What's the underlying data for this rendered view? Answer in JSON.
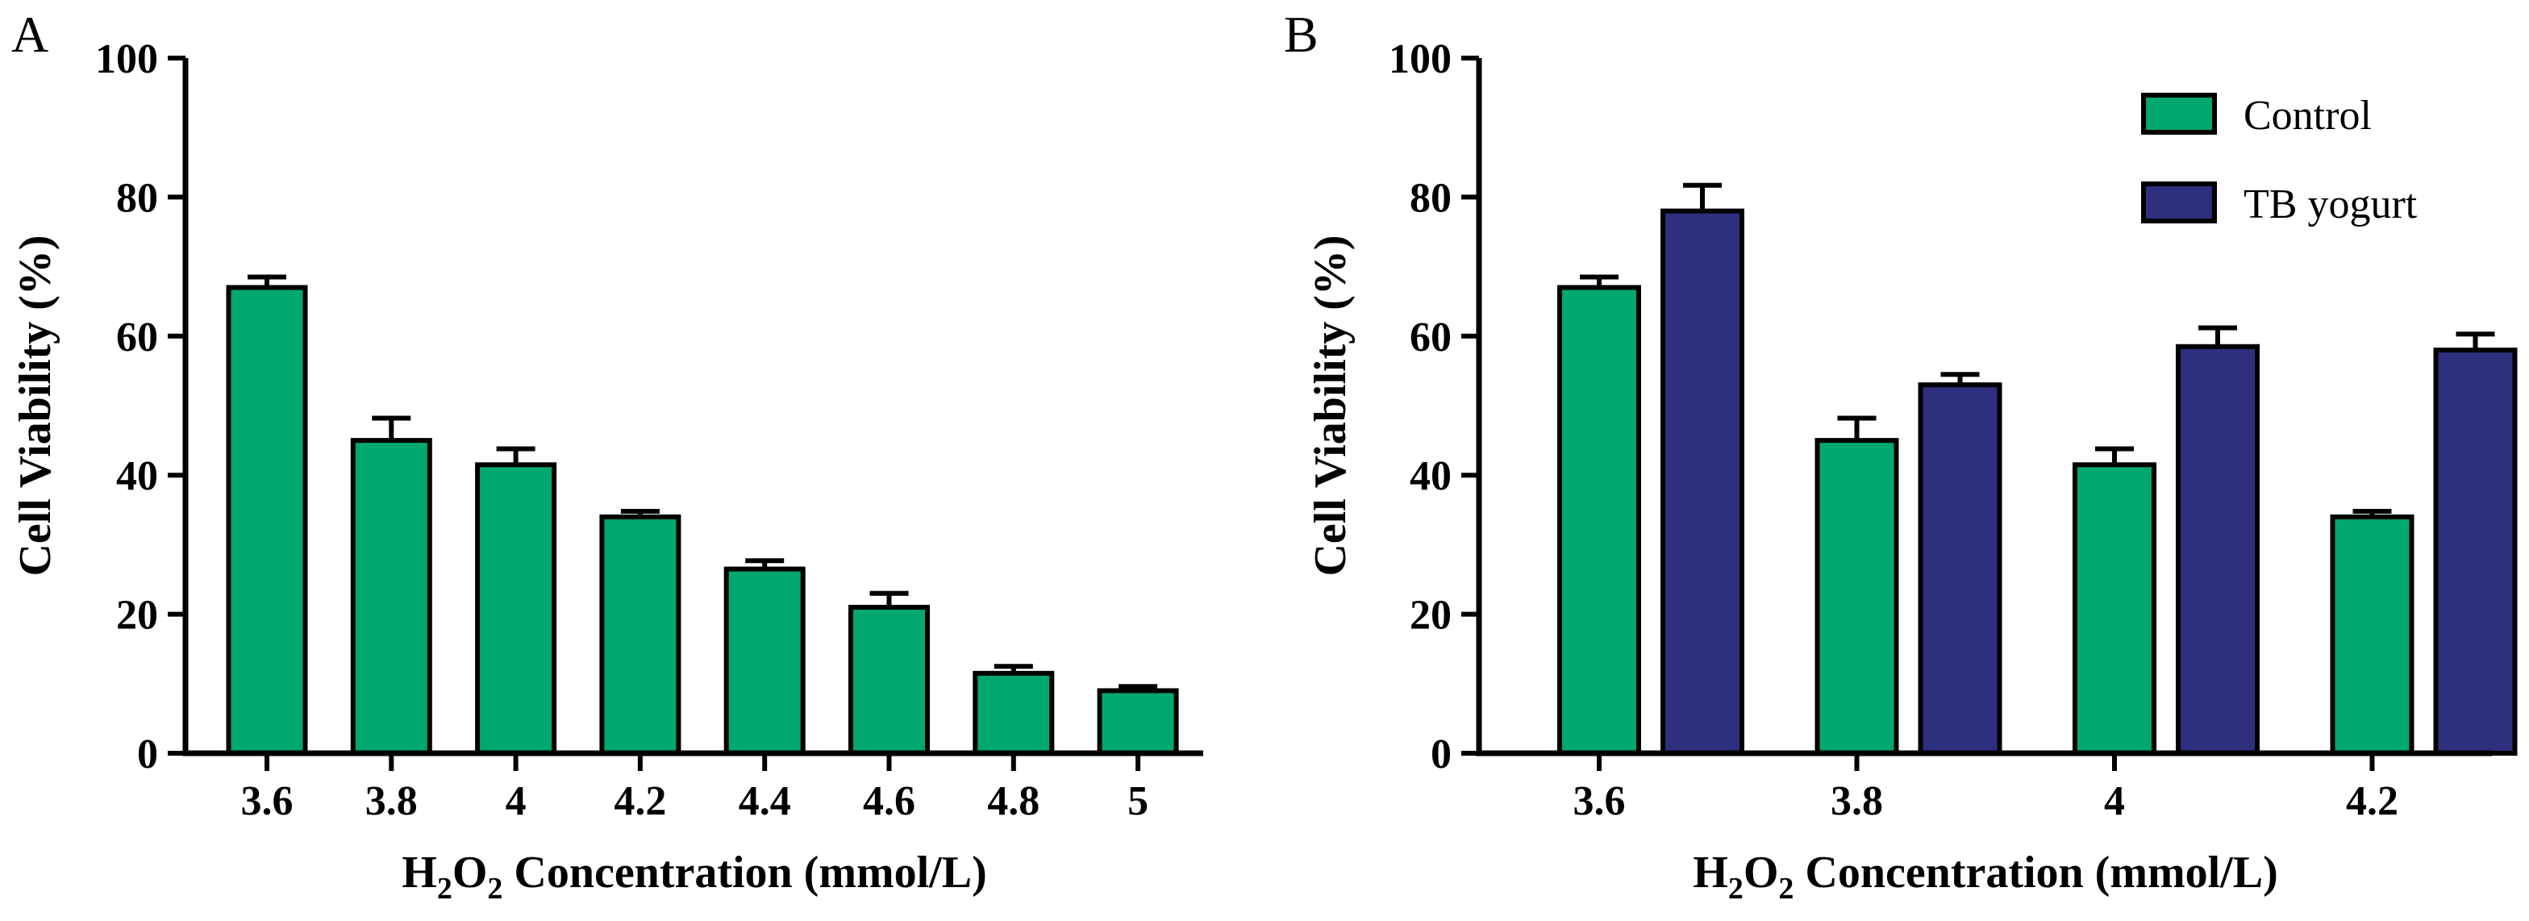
{
  "colors": {
    "control": "#00a870",
    "tb_yogurt": "#2f2f7f"
  },
  "chart_data": [
    {
      "panel": "A",
      "type": "bar",
      "xlabel_parts": [
        "H",
        "2",
        "O",
        "2",
        " Concentration (mmol/L)"
      ],
      "ylabel": "Cell Viability (%)",
      "ylim": [
        0,
        100
      ],
      "yticks": [
        "0",
        "20",
        "40",
        "60",
        "80",
        "100"
      ],
      "categories": [
        "3.6",
        "3.8",
        "4",
        "4.2",
        "4.4",
        "4.6",
        "4.8",
        "5"
      ],
      "series": [
        {
          "name": "Control",
          "color_key": "control",
          "values": [
            67,
            45,
            41.5,
            34,
            26.5,
            21,
            11.5,
            9
          ],
          "errors": [
            1.5,
            3.2,
            2.3,
            0.8,
            1.2,
            2.0,
            1.0,
            0.6
          ]
        }
      ]
    },
    {
      "panel": "B",
      "type": "bar",
      "xlabel_parts": [
        "H",
        "2",
        "O",
        "2",
        " Concentration (mmol/L)"
      ],
      "ylabel": "Cell Viability (%)",
      "ylim": [
        0,
        100
      ],
      "yticks": [
        "0",
        "20",
        "40",
        "60",
        "80",
        "100"
      ],
      "categories": [
        "3.6",
        "3.8",
        "4",
        "4.2"
      ],
      "legend": {
        "position": "top-right"
      },
      "series": [
        {
          "name": "Control",
          "color_key": "control",
          "values": [
            67,
            45,
            41.5,
            34
          ],
          "errors": [
            1.5,
            3.2,
            2.3,
            0.8
          ]
        },
        {
          "name": "TB yogurt",
          "color_key": "tb_yogurt",
          "values": [
            78,
            53,
            58.5,
            58
          ],
          "errors": [
            3.7,
            1.5,
            2.7,
            2.3
          ]
        }
      ]
    }
  ]
}
